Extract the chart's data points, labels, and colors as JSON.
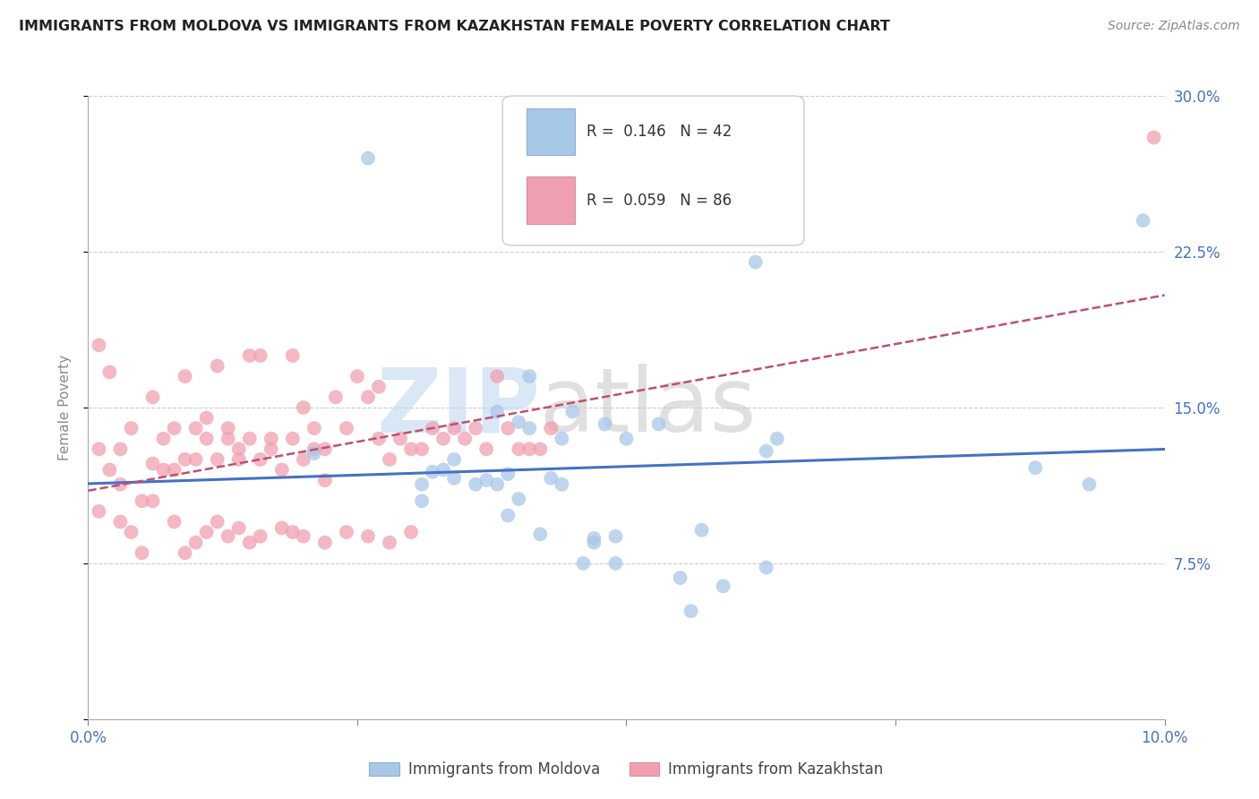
{
  "title": "IMMIGRANTS FROM MOLDOVA VS IMMIGRANTS FROM KAZAKHSTAN FEMALE POVERTY CORRELATION CHART",
  "source": "Source: ZipAtlas.com",
  "ylabel": "Female Poverty",
  "legend_label_blue": "Immigrants from Moldova",
  "legend_label_pink": "Immigrants from Kazakhstan",
  "R_blue": 0.146,
  "N_blue": 42,
  "R_pink": 0.059,
  "N_pink": 86,
  "xlim": [
    0.0,
    0.1
  ],
  "ylim": [
    0.0,
    0.3
  ],
  "color_blue": "#A8C8E8",
  "color_pink": "#F0A0B0",
  "color_blue_line": "#4472C4",
  "color_pink_line": "#C05070",
  "watermark_zip": "ZIP",
  "watermark_atlas": "atlas",
  "blue_x": [
    0.021,
    0.026,
    0.031,
    0.031,
    0.032,
    0.033,
    0.034,
    0.034,
    0.036,
    0.037,
    0.038,
    0.038,
    0.039,
    0.039,
    0.04,
    0.04,
    0.041,
    0.042,
    0.043,
    0.044,
    0.044,
    0.045,
    0.046,
    0.047,
    0.047,
    0.048,
    0.049,
    0.049,
    0.05,
    0.053,
    0.055,
    0.056,
    0.057,
    0.059,
    0.062,
    0.063,
    0.063,
    0.064,
    0.041,
    0.088,
    0.093,
    0.098
  ],
  "blue_y": [
    0.128,
    0.27,
    0.113,
    0.105,
    0.119,
    0.12,
    0.116,
    0.125,
    0.113,
    0.115,
    0.148,
    0.113,
    0.118,
    0.098,
    0.106,
    0.143,
    0.14,
    0.089,
    0.116,
    0.135,
    0.113,
    0.148,
    0.075,
    0.085,
    0.087,
    0.142,
    0.075,
    0.088,
    0.135,
    0.142,
    0.068,
    0.052,
    0.091,
    0.064,
    0.22,
    0.073,
    0.129,
    0.135,
    0.165,
    0.121,
    0.113,
    0.24
  ],
  "pink_x": [
    0.001,
    0.001,
    0.002,
    0.003,
    0.003,
    0.004,
    0.005,
    0.006,
    0.006,
    0.007,
    0.007,
    0.008,
    0.008,
    0.009,
    0.009,
    0.01,
    0.01,
    0.011,
    0.011,
    0.012,
    0.012,
    0.013,
    0.013,
    0.014,
    0.014,
    0.015,
    0.015,
    0.016,
    0.016,
    0.017,
    0.017,
    0.018,
    0.019,
    0.019,
    0.02,
    0.02,
    0.021,
    0.021,
    0.022,
    0.022,
    0.023,
    0.024,
    0.025,
    0.026,
    0.027,
    0.027,
    0.028,
    0.029,
    0.03,
    0.031,
    0.032,
    0.033,
    0.034,
    0.035,
    0.036,
    0.037,
    0.038,
    0.039,
    0.04,
    0.041,
    0.042,
    0.043,
    0.001,
    0.002,
    0.003,
    0.004,
    0.005,
    0.006,
    0.008,
    0.009,
    0.01,
    0.011,
    0.012,
    0.013,
    0.014,
    0.015,
    0.016,
    0.018,
    0.019,
    0.02,
    0.022,
    0.024,
    0.026,
    0.028,
    0.03,
    0.099
  ],
  "pink_y": [
    0.18,
    0.13,
    0.167,
    0.13,
    0.113,
    0.14,
    0.105,
    0.155,
    0.123,
    0.12,
    0.135,
    0.12,
    0.14,
    0.125,
    0.165,
    0.125,
    0.14,
    0.135,
    0.145,
    0.17,
    0.125,
    0.135,
    0.14,
    0.125,
    0.13,
    0.175,
    0.135,
    0.125,
    0.175,
    0.13,
    0.135,
    0.12,
    0.135,
    0.175,
    0.125,
    0.15,
    0.13,
    0.14,
    0.115,
    0.13,
    0.155,
    0.14,
    0.165,
    0.155,
    0.135,
    0.16,
    0.125,
    0.135,
    0.13,
    0.13,
    0.14,
    0.135,
    0.14,
    0.135,
    0.14,
    0.13,
    0.165,
    0.14,
    0.13,
    0.13,
    0.13,
    0.14,
    0.1,
    0.12,
    0.095,
    0.09,
    0.08,
    0.105,
    0.095,
    0.08,
    0.085,
    0.09,
    0.095,
    0.088,
    0.092,
    0.085,
    0.088,
    0.092,
    0.09,
    0.088,
    0.085,
    0.09,
    0.088,
    0.085,
    0.09,
    0.28
  ]
}
